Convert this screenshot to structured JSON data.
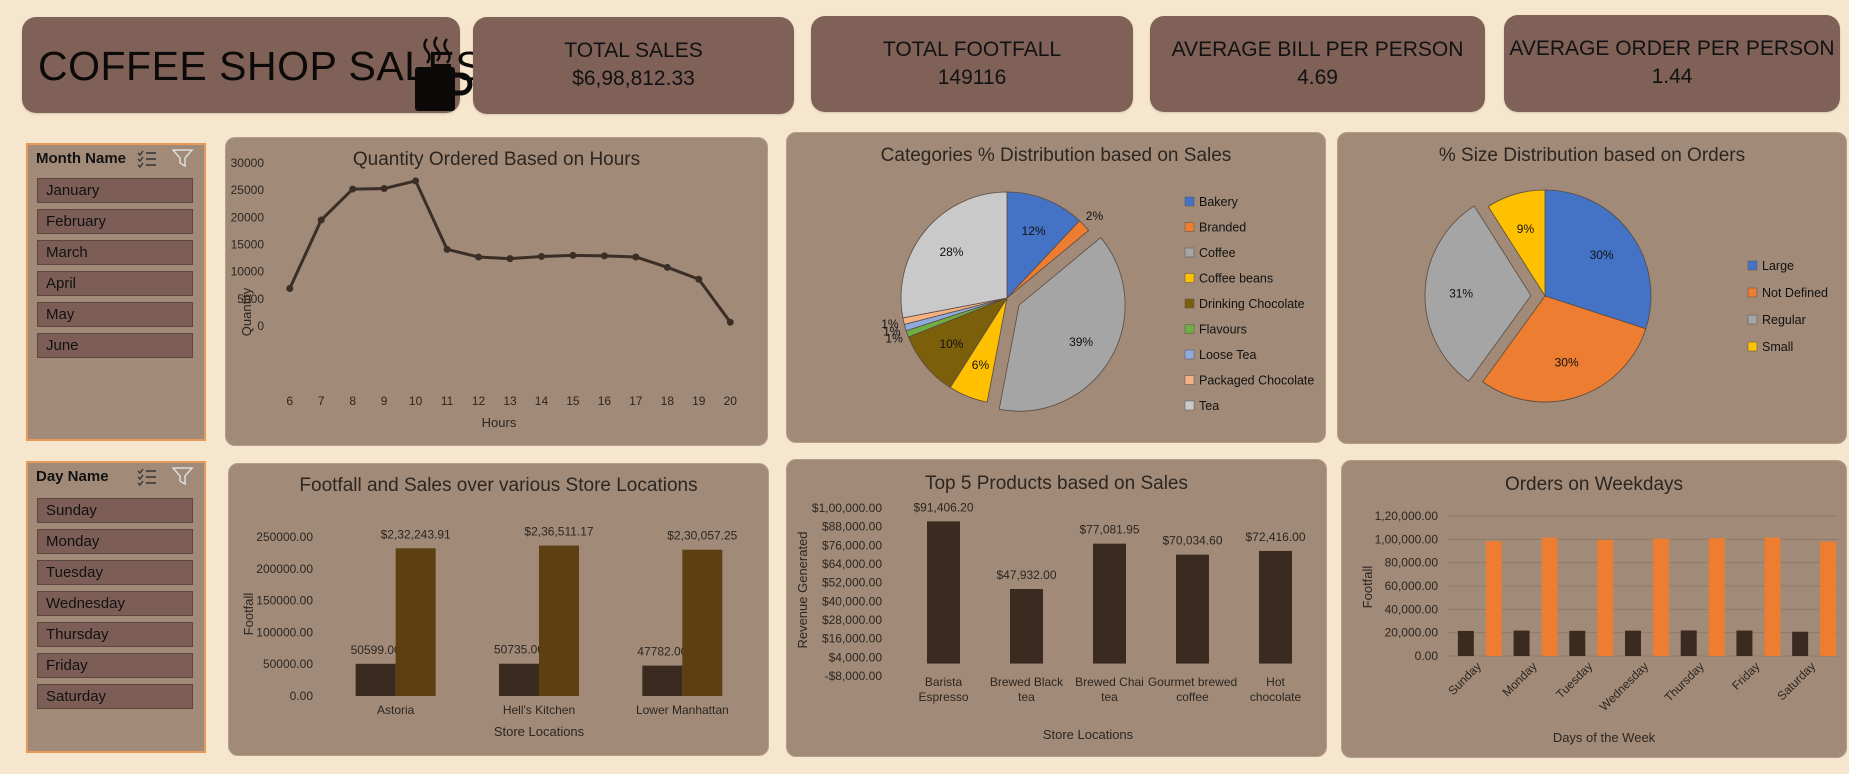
{
  "header": {
    "title": "COFFEE SHOP SALES",
    "cup_icon": "coffee-cup-icon"
  },
  "kpis": [
    {
      "label": "TOTAL SALES",
      "value": "$6,98,812.33"
    },
    {
      "label": "TOTAL FOOTFALL",
      "value": "149116"
    },
    {
      "label": "AVERAGE BILL PER PERSON",
      "value": "4.69"
    },
    {
      "label": "AVERAGE ORDER PER PERSON",
      "value": "1.44"
    }
  ],
  "slicers": {
    "month": {
      "title": "Month Name",
      "items": [
        "January",
        "February",
        "March",
        "April",
        "May",
        "June"
      ]
    },
    "day": {
      "title": "Day Name",
      "items": [
        "Sunday",
        "Monday",
        "Tuesday",
        "Wednesday",
        "Thursday",
        "Friday",
        "Saturday"
      ]
    }
  },
  "colors": {
    "background": "#f6e6cd",
    "card": "#7f6157",
    "panel": "#a18b78",
    "dark_bar": "#3b2a20",
    "brown_bar": "#5e3f12",
    "orange": "#ed7d31",
    "line": "#3b2e26"
  },
  "chart_data": [
    {
      "type": "line",
      "title": "Quantity Ordered Based on Hours",
      "xlabel": "Hours",
      "ylabel": "Quantity",
      "x": [
        6,
        7,
        8,
        9,
        10,
        11,
        12,
        13,
        14,
        15,
        16,
        17,
        18,
        19,
        20
      ],
      "values": [
        6900,
        19500,
        25200,
        25300,
        26700,
        14100,
        12700,
        12400,
        12800,
        13000,
        12900,
        12700,
        10800,
        8600,
        700
      ],
      "ylim": [
        0,
        30000
      ],
      "yticks": [
        "0",
        "5000",
        "10000",
        "15000",
        "20000",
        "25000",
        "30000"
      ]
    },
    {
      "type": "pie",
      "title": "Categories % Distribution based on Sales",
      "legend": "right",
      "slices": [
        {
          "label": "Bakery",
          "value": 12,
          "text": "12%",
          "color": "#4472c4"
        },
        {
          "label": "Branded",
          "value": 2,
          "text": "2%",
          "color": "#ed7d31"
        },
        {
          "label": "Coffee",
          "value": 39,
          "text": "39%",
          "color": "#a5a5a5"
        },
        {
          "label": "Coffee beans",
          "value": 6,
          "text": "6%",
          "color": "#ffc000"
        },
        {
          "label": "Drinking Chocolate",
          "value": 10,
          "text": "10%",
          "color": "#7b5f0a"
        },
        {
          "label": "Flavours",
          "value": 1,
          "text": "1%",
          "color": "#70ad47"
        },
        {
          "label": "Loose Tea",
          "value": 1,
          "text": "1%",
          "color": "#8faadc"
        },
        {
          "label": "Packaged Chocolate",
          "value": 1,
          "text": "1%",
          "color": "#f4b183"
        },
        {
          "label": "Tea",
          "value": 28,
          "text": "28%",
          "color": "#c9c9c9"
        }
      ]
    },
    {
      "type": "pie",
      "title": "% Size Distribution based on Orders",
      "legend": "right",
      "slices": [
        {
          "label": "Large",
          "value": 30,
          "text": "30%",
          "color": "#4472c4"
        },
        {
          "label": "Not Defined",
          "value": 30,
          "text": "30%",
          "color": "#ed7d31"
        },
        {
          "label": "Regular",
          "value": 31,
          "text": "31%",
          "color": "#a5a5a5"
        },
        {
          "label": "Small",
          "value": 9,
          "text": "9%",
          "color": "#ffc000"
        }
      ]
    },
    {
      "type": "bar",
      "title": "Footfall and Sales over various Store Locations",
      "xlabel": "Store Locations",
      "ylabel": "Footfall",
      "categories": [
        "Astoria",
        "Hell's Kitchen",
        "Lower Manhattan"
      ],
      "series": [
        {
          "values": [
            50599,
            50735,
            47782
          ],
          "labels": [
            "50599.00",
            "50735.00",
            "47782.00"
          ]
        },
        {
          "values": [
            232243.91,
            236511.17,
            230057.25
          ],
          "labels": [
            "$2,32,243.91",
            "$2,36,511.17",
            "$2,30,057.25"
          ]
        }
      ],
      "ylim": [
        0,
        250000
      ],
      "yticks": [
        "0.00",
        "50000.00",
        "100000.00",
        "150000.00",
        "200000.00",
        "250000.00"
      ]
    },
    {
      "type": "bar",
      "title": "Top 5 Products based on Sales",
      "xlabel": "Store Locations",
      "ylabel": "Revenue Generated",
      "categories": [
        "Barista Espresso",
        "Brewed Black tea",
        "Brewed Chai tea",
        "Gourmet brewed coffee",
        "Hot chocolate"
      ],
      "values": [
        91406.2,
        47932.0,
        77081.95,
        70034.6,
        72416.0
      ],
      "labels": [
        "$91,406.20",
        "$47,932.00",
        "$77,081.95",
        "$70,034.60",
        "$72,416.00"
      ],
      "ylim": [
        -8000,
        100000
      ],
      "yticks": [
        "-$8,000.00",
        "$4,000.00",
        "$16,000.00",
        "$28,000.00",
        "$40,000.00",
        "$52,000.00",
        "$64,000.00",
        "$76,000.00",
        "$88,000.00",
        "$1,00,000.00"
      ]
    },
    {
      "type": "bar",
      "title": "Orders on Weekdays",
      "xlabel": "Days of the Week",
      "ylabel": "Footfall",
      "categories": [
        "Sunday",
        "Monday",
        "Tuesday",
        "Wednesday",
        "Thursday",
        "Friday",
        "Saturday"
      ],
      "series": [
        {
          "values": [
            21500,
            21800,
            21600,
            21700,
            21900,
            21800,
            20800
          ]
        },
        {
          "values": [
            98500,
            101500,
            99500,
            100500,
            101000,
            101500,
            98000
          ]
        }
      ],
      "ylim": [
        0,
        120000
      ],
      "yticks": [
        "0.00",
        "20,000.00",
        "40,000.00",
        "60,000.00",
        "80,000.00",
        "1,00,000.00",
        "1,20,000.00"
      ],
      "grid": true
    }
  ]
}
